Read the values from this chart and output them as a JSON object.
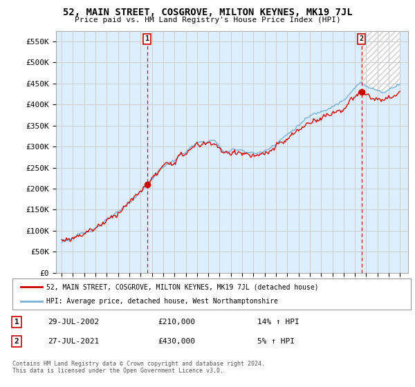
{
  "title": "52, MAIN STREET, COSGROVE, MILTON KEYNES, MK19 7JL",
  "subtitle": "Price paid vs. HM Land Registry's House Price Index (HPI)",
  "ylabel_ticks": [
    "£0",
    "£50K",
    "£100K",
    "£150K",
    "£200K",
    "£250K",
    "£300K",
    "£350K",
    "£400K",
    "£450K",
    "£500K",
    "£550K"
  ],
  "ytick_vals": [
    0,
    50000,
    100000,
    150000,
    200000,
    250000,
    300000,
    350000,
    400000,
    450000,
    500000,
    550000
  ],
  "ylim": [
    0,
    575000
  ],
  "legend_label_red": "52, MAIN STREET, COSGROVE, MILTON KEYNES, MK19 7JL (detached house)",
  "legend_label_blue": "HPI: Average price, detached house, West Northamptonshire",
  "annotation1_date": "29-JUL-2002",
  "annotation1_price": "£210,000",
  "annotation1_hpi": "14% ↑ HPI",
  "annotation2_date": "27-JUL-2021",
  "annotation2_price": "£430,000",
  "annotation2_hpi": "5% ↑ HPI",
  "footer": "Contains HM Land Registry data © Crown copyright and database right 2024.\nThis data is licensed under the Open Government Licence v3.0.",
  "red_color": "#cc0000",
  "blue_color": "#7ab0d4",
  "blue_fill": "#ddeeff",
  "background_color": "#ffffff",
  "grid_color": "#cccccc",
  "sale1_x": 2002.58,
  "sale1_y": 210000,
  "sale2_x": 2021.58,
  "sale2_y": 430000,
  "xlim_left": 1994.5,
  "xlim_right": 2025.7
}
